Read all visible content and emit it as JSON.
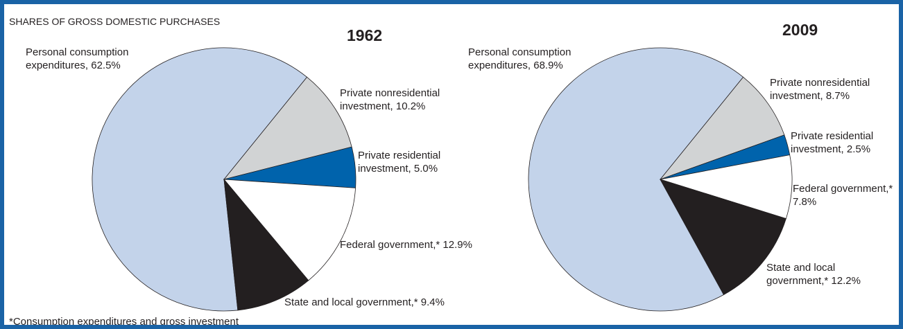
{
  "title": "SHARES OF GROSS DOMESTIC PURCHASES",
  "note": "*Consumption expenditures and gross investment",
  "chart_data": [
    {
      "type": "pie",
      "title": "1962",
      "categories": [
        "Personal consumption expenditures, 62.5%",
        "Private nonresidential investment, 10.2%",
        "Private residential investment, 5.0%",
        "Federal government,* 12.9%",
        "State and local government,* 9.4%"
      ],
      "values": [
        62.5,
        10.2,
        5.0,
        12.9,
        9.4
      ],
      "colors": [
        "#c3d3ea",
        "#d1d3d4",
        "#0063ac",
        "#ffffff",
        "#231f20"
      ]
    },
    {
      "type": "pie",
      "title": "2009",
      "categories": [
        "Personal consumption expenditures, 68.9%",
        "Private nonresidential investment, 8.7%",
        "Private residential investment, 2.5%",
        "Federal government,* 7.8%",
        "State and local government,* 12.2%"
      ],
      "values": [
        68.9,
        8.7,
        2.5,
        7.8,
        12.2
      ],
      "colors": [
        "#c3d3ea",
        "#d1d3d4",
        "#0063ac",
        "#ffffff",
        "#231f20"
      ]
    }
  ]
}
